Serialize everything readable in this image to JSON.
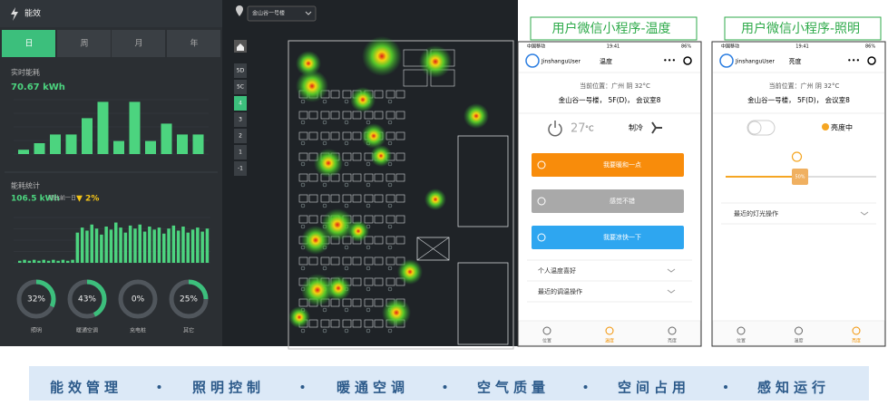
{
  "dashboard": {
    "title": "能效",
    "tabs": [
      "日",
      "周",
      "月",
      "年"
    ],
    "realtime": {
      "label": "实时能耗",
      "value": "70.67 kWh",
      "bars": [
        4,
        10,
        18,
        18,
        33,
        48,
        12,
        48,
        12,
        28,
        18,
        18
      ]
    },
    "stats": {
      "label": "能耗统计",
      "value": "106.5 kWh",
      "compare_label": "同比前一日",
      "change": "▼ 2%",
      "bars": [
        2,
        3,
        2,
        3,
        2,
        3,
        2,
        3,
        2,
        3,
        2,
        3,
        30,
        35,
        32,
        38,
        34,
        28,
        36,
        33,
        40,
        35,
        30,
        37,
        34,
        38,
        31,
        36,
        33,
        35,
        29,
        34,
        37,
        32,
        36,
        30,
        33,
        35,
        31,
        34
      ]
    },
    "gauges": {
      "values": [
        32,
        43,
        0,
        25
      ],
      "value_labels": [
        "32%",
        "43%",
        "0%",
        "25%"
      ],
      "names": [
        "照明",
        "暖通空调",
        "充电桩",
        "其它"
      ]
    }
  },
  "heatmap": {
    "building": "金山谷一号楼",
    "floors": [
      "5D",
      "5C",
      "4",
      "3",
      "2",
      "1",
      "-1"
    ]
  },
  "phones": [
    {
      "caption": "用户微信小程序-温度",
      "carrier": "中国移动",
      "time": "19:41",
      "battery": "86%",
      "user": "JinshanguUser",
      "page_title": "温度",
      "location": "当前位置：广州 阴 32°C",
      "address": "金山谷一号楼， 5F(D)， 会议室8",
      "temperature": 27,
      "temp_unit": "°C",
      "mode": "制冷",
      "buttons": [
        "我要暖和一点",
        "感觉不错",
        "我要凉快一下"
      ],
      "menu": [
        "个人温度喜好",
        "最近的调温操作"
      ],
      "tabs": [
        "位置",
        "温度",
        "亮度"
      ]
    },
    {
      "caption": "用户微信小程序-照明",
      "carrier": "中国移动",
      "time": "19:41",
      "battery": "86%",
      "user": "JinshanguUser",
      "page_title": "亮度",
      "location": "当前位置：广州 阴 32°C",
      "address": "金山谷一号楼， 5F(D)， 会议室8",
      "light_status": "亮度中",
      "slider": "50%",
      "menu": [
        "最近的灯光操作"
      ],
      "tabs": [
        "位置",
        "温度",
        "亮度"
      ]
    }
  ],
  "banner": {
    "items": [
      "能效管理",
      "照明控制",
      "暖通空调",
      "空气质量",
      "空间占用",
      "感知运行"
    ]
  }
}
